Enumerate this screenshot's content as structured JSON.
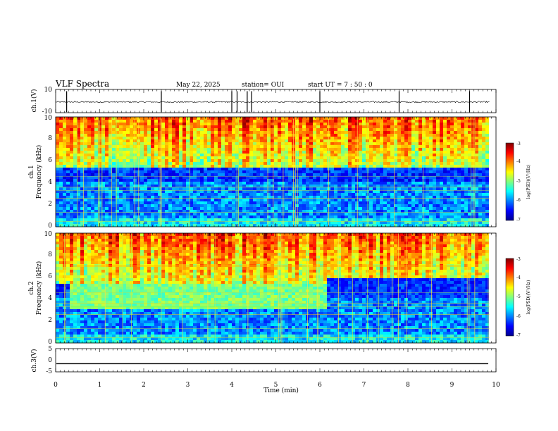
{
  "header": {
    "title": "VLF Spectra",
    "date": "May 22, 2025",
    "station": "station= OUI",
    "start": "start  UT  =   7 : 50 : 0"
  },
  "chart_data": [
    {
      "type": "line",
      "panel": "ch1-waveform",
      "ylabel": "ch.1(V)",
      "ylim": [
        -10,
        10
      ],
      "yticks": [
        "10",
        "-10"
      ],
      "xlim": [
        0,
        10
      ],
      "baseline": -0.8,
      "noise_amplitude": 0.6,
      "spikes_min": [
        0.25,
        2.4,
        4.0,
        4.12,
        4.35,
        4.45,
        6.0,
        7.8,
        9.4
      ]
    },
    {
      "type": "heatmap",
      "panel": "ch1-spectrogram",
      "ylabel": "ch.1\nFrequency (kHz)",
      "ylim": [
        0,
        10
      ],
      "yticks": [
        "0",
        "2",
        "4",
        "6",
        "8",
        "10"
      ],
      "xlim": [
        0,
        10
      ],
      "colorbar": {
        "label": "log(PSD)(V²/Hz)",
        "range": [
          -7,
          -3
        ],
        "ticks": [
          "-3",
          "-4",
          "-5",
          "-6",
          "-7"
        ]
      },
      "description_values": {
        "sferic_band_top_khz": 5.0,
        "quiet_floor_log_psd": -6.6,
        "sferic_log_psd": -4.5
      }
    },
    {
      "type": "heatmap",
      "panel": "ch2-spectrogram",
      "ylabel": "ch.2\nFrequency (kHz)",
      "ylim": [
        0,
        10
      ],
      "yticks": [
        "0",
        "2",
        "4",
        "6",
        "8",
        "10"
      ],
      "xlim": [
        0,
        10
      ],
      "colorbar": {
        "label": "log(PSD)(V²/Hz)",
        "range": [
          -7,
          -3
        ],
        "ticks": [
          "-3",
          "-4",
          "-5",
          "-6",
          "-7"
        ]
      },
      "description_values": {
        "band_start_min": 0.35,
        "band_end_min": 6.15,
        "band_low_khz": 3.2,
        "band_high_khz": 7.0,
        "band_log_psd": -5.3
      }
    },
    {
      "type": "line",
      "panel": "ch3-waveform",
      "ylabel": "ch.3(V)",
      "ylim": [
        -5,
        5
      ],
      "yticks": [
        "5",
        "0",
        "-5"
      ],
      "xlim": [
        0,
        10
      ],
      "value": -1.5
    }
  ],
  "xaxis": {
    "label": "Time (min)",
    "ticks": [
      "0",
      "1",
      "2",
      "3",
      "4",
      "5",
      "6",
      "7",
      "8",
      "9",
      "10"
    ]
  }
}
